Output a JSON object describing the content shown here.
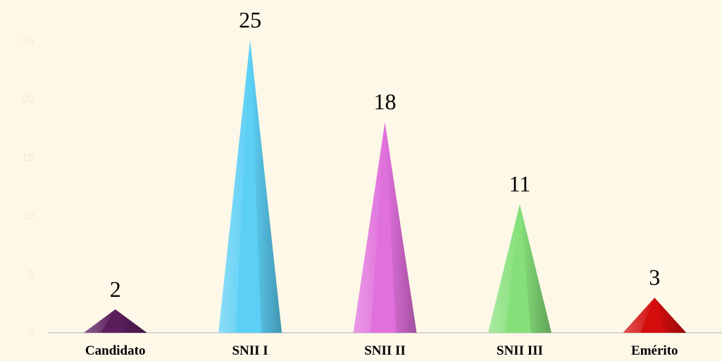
{
  "chart_data": {
    "type": "bar",
    "shape": "pyramid",
    "categories": [
      "Candidato",
      "SNII I",
      "SNII II",
      "SNII III",
      "Emérito"
    ],
    "values": [
      2,
      25,
      18,
      11,
      3
    ],
    "colors": [
      "#5a1e5c",
      "#5ccff5",
      "#e070dc",
      "#86e07a",
      "#d40d0d"
    ],
    "ylim": [
      0,
      25
    ],
    "y_ticks": [
      "0",
      "5",
      "10",
      "15",
      "20",
      "25"
    ],
    "grid": false,
    "legend": "none"
  }
}
